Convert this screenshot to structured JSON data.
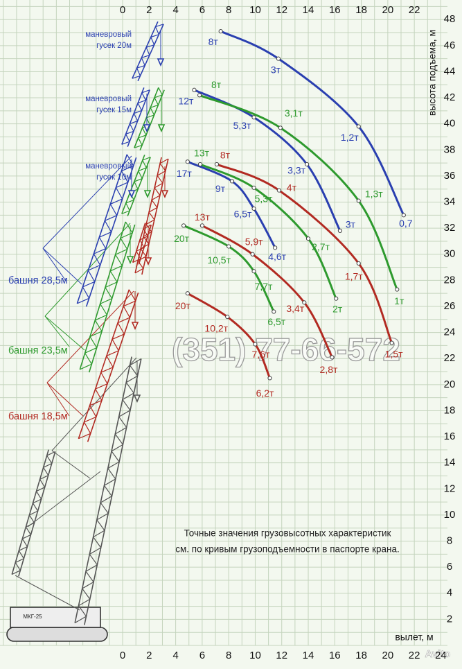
{
  "chart_data": {
    "type": "line",
    "x_axis_label": "вылет, м",
    "y_axis_label": "высота подъема, м",
    "xlim": [
      -9.25,
      24.5
    ],
    "ylim": [
      0,
      49.5
    ],
    "xticks": [
      0,
      2,
      4,
      6,
      8,
      10,
      12,
      14,
      16,
      18,
      20,
      22,
      24
    ],
    "xticks_top": [
      0,
      2,
      4,
      6,
      8,
      10,
      12,
      14,
      16,
      18,
      20,
      22
    ],
    "yticks": [
      2,
      4,
      6,
      8,
      10,
      12,
      14,
      16,
      18,
      20,
      22,
      24,
      26,
      28,
      30,
      32,
      34,
      36,
      38,
      40,
      42,
      44,
      46,
      48
    ],
    "grid": true,
    "grid_step": 1,
    "series": [
      {
        "color": "#2a3fb0",
        "x": [
          7.4,
          11.75,
          17.8,
          21.2
        ],
        "values": [
          47.1,
          45.0,
          39.8,
          33.0
        ],
        "point_labels": [
          "8т",
          "3т",
          "1,2т",
          "0,7"
        ]
      },
      {
        "color": "#2a3fb0",
        "x": [
          5.4,
          9.9,
          13.9,
          16.4
        ],
        "values": [
          42.6,
          40.5,
          36.9,
          31.8
        ],
        "point_labels": [
          "12т",
          "5,3т",
          "3,3т",
          "3т"
        ]
      },
      {
        "color": "#2a3fb0",
        "x": [
          4.9,
          8.25,
          9.9,
          11.5
        ],
        "values": [
          37.1,
          35.6,
          33.5,
          30.5
        ],
        "point_labels": [
          "17т",
          "9т",
          "6,5т",
          "4,6т"
        ]
      },
      {
        "color": "#2e9a2e",
        "x": [
          5.8,
          11.9,
          17.8,
          20.7
        ],
        "values": [
          42.2,
          39.7,
          34.1,
          27.3
        ],
        "point_labels": [
          "8т",
          "3,1т",
          "1,3т",
          "1т"
        ]
      },
      {
        "color": "#2e9a2e",
        "x": [
          5.85,
          9.9,
          14.0,
          16.1
        ],
        "values": [
          36.9,
          35.1,
          31.2,
          26.6
        ],
        "point_labels": [
          "13т",
          "5,3т",
          "2,7т",
          "2т"
        ]
      },
      {
        "color": "#2e9a2e",
        "x": [
          4.6,
          8.0,
          9.9,
          11.4
        ],
        "values": [
          32.2,
          30.6,
          28.7,
          25.6
        ],
        "point_labels": [
          "20т",
          "10,5т",
          "7,7т",
          "6,5т"
        ]
      },
      {
        "color": "#b22a22",
        "x": [
          7.1,
          11.8,
          17.8,
          20.3
        ],
        "values": [
          36.9,
          34.9,
          29.3,
          23.2
        ],
        "point_labels": [
          "8т",
          "4т",
          "1,7т",
          "1,5т"
        ]
      },
      {
        "color": "#b22a22",
        "x": [
          6.0,
          9.8,
          13.7,
          15.8
        ],
        "values": [
          32.2,
          30.0,
          26.3,
          22.1
        ],
        "point_labels": [
          "13т",
          "5,9т",
          "3,4т",
          "2,8т"
        ]
      },
      {
        "color": "#b22a22",
        "x": [
          4.9,
          7.9,
          10.0,
          11.1
        ],
        "values": [
          27.0,
          25.2,
          23.1,
          20.5
        ],
        "point_labels": [
          "20т",
          "10,2т",
          "7,6т",
          "6,2т"
        ]
      }
    ],
    "jib_labels": [
      {
        "lines": [
          "маневровый",
          "гусек 20м"
        ],
        "color": "#2a3fb0"
      },
      {
        "lines": [
          "маневровый",
          "гусек 15м"
        ],
        "color": "#2a3fb0"
      },
      {
        "lines": [
          "маневровый",
          "гусек 10м"
        ],
        "color": "#2a3fb0"
      }
    ],
    "tower_labels": [
      {
        "text": "башня 28,5м",
        "color": "#2a3fb0"
      },
      {
        "text": "башня 23,5м",
        "color": "#2e9a2e"
      },
      {
        "text": "башня 18,5м",
        "color": "#b22a22"
      }
    ],
    "crane_model": "МКГ-25",
    "note": [
      "Точные значения грузовысотных характеристик",
      "см. по кривым грузоподъемности в паспорте крана."
    ],
    "watermark": "(351) 77-66-572",
    "logo": "Avito"
  }
}
